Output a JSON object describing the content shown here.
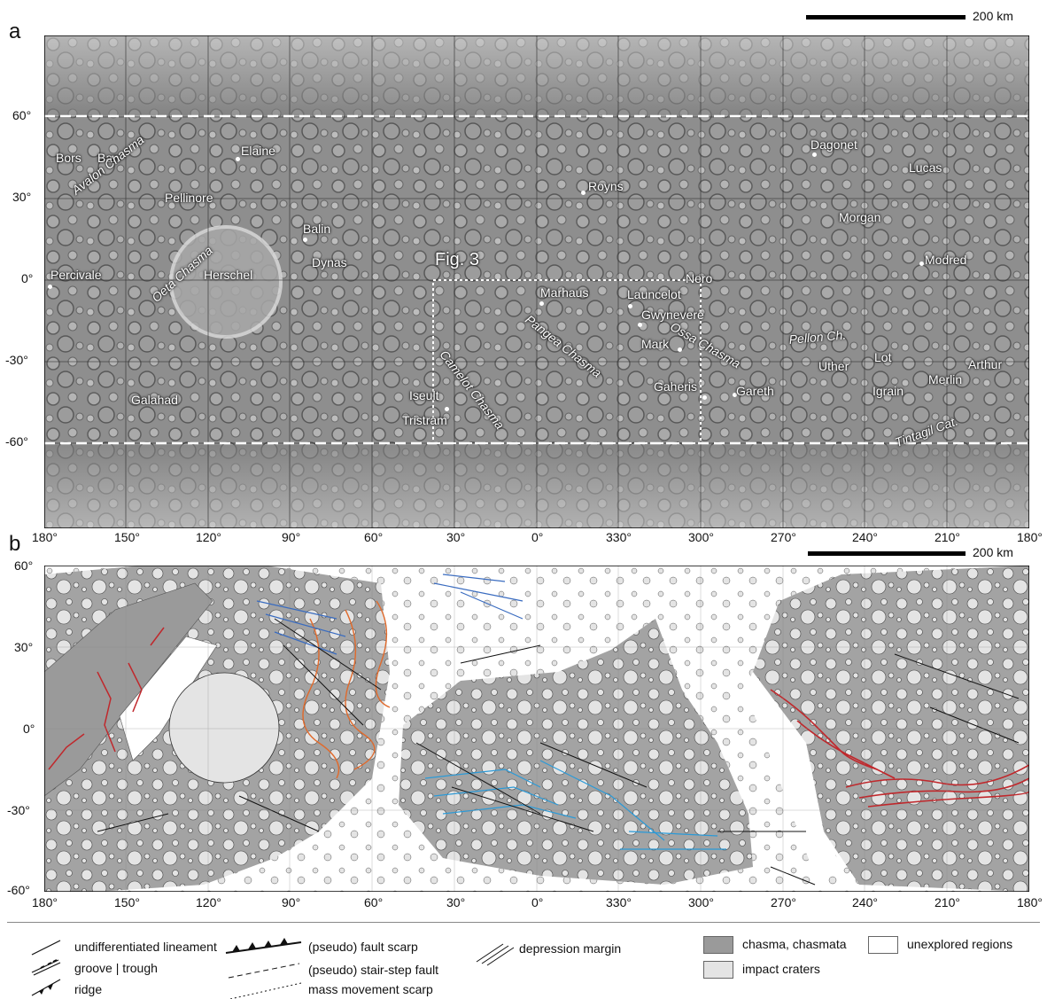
{
  "panel_a": {
    "label": "a",
    "scale_bar": "200 km",
    "fig_box_label": "Fig. 3",
    "features": [
      {
        "name": "Bors",
        "style": "normal"
      },
      {
        "name": "Ban",
        "style": "normal"
      },
      {
        "name": "Elaine",
        "style": "normal"
      },
      {
        "name": "Avalon Chasma",
        "style": "italic"
      },
      {
        "name": "Pellinore",
        "style": "normal"
      },
      {
        "name": "Balin",
        "style": "normal"
      },
      {
        "name": "Oeta Chasma",
        "style": "italic"
      },
      {
        "name": "Dynas",
        "style": "normal"
      },
      {
        "name": "Percivale",
        "style": "normal"
      },
      {
        "name": "Herschel",
        "style": "normal"
      },
      {
        "name": "Galahad",
        "style": "normal"
      },
      {
        "name": "Royns",
        "style": "normal"
      },
      {
        "name": "Dagonet",
        "style": "normal"
      },
      {
        "name": "Lucas",
        "style": "normal"
      },
      {
        "name": "Morgan",
        "style": "normal"
      },
      {
        "name": "Modred",
        "style": "normal"
      },
      {
        "name": "Nero",
        "style": "normal"
      },
      {
        "name": "Marhaus",
        "style": "normal"
      },
      {
        "name": "Launcelot",
        "style": "normal"
      },
      {
        "name": "Gwynevere",
        "style": "normal"
      },
      {
        "name": "Mark",
        "style": "normal"
      },
      {
        "name": "Pangea Chasma",
        "style": "italic"
      },
      {
        "name": "Ossa Chasma",
        "style": "italic"
      },
      {
        "name": "Camelot Chasma",
        "style": "italic"
      },
      {
        "name": "Iseult",
        "style": "normal"
      },
      {
        "name": "Tristram",
        "style": "normal"
      },
      {
        "name": "Gaheris",
        "style": "normal"
      },
      {
        "name": "Gareth",
        "style": "normal"
      },
      {
        "name": "Pellon Ch.",
        "style": "italic"
      },
      {
        "name": "Uther",
        "style": "normal"
      },
      {
        "name": "Lot",
        "style": "normal"
      },
      {
        "name": "Igrain",
        "style": "normal"
      },
      {
        "name": "Merlin",
        "style": "normal"
      },
      {
        "name": "Arthur",
        "style": "normal"
      },
      {
        "name": "Tintagil Cat.",
        "style": "italic"
      }
    ],
    "lat_ticks": [
      "60°",
      "30°",
      "0°",
      "-30°",
      "-60°"
    ],
    "lon_ticks": [
      "180°",
      "150°",
      "120°",
      "90°",
      "60°",
      "30°",
      "0°",
      "330°",
      "300°",
      "270°",
      "240°",
      "210°",
      "180°"
    ]
  },
  "panel_b": {
    "label": "b",
    "scale_bar": "200 km",
    "lat_ticks": [
      "60°",
      "30°",
      "0°",
      "-30°",
      "-60°"
    ],
    "lon_ticks": [
      "180°",
      "150°",
      "120°",
      "90°",
      "60°",
      "30°",
      "0°",
      "330°",
      "300°",
      "270°",
      "240°",
      "210°",
      "180°"
    ]
  },
  "legend": {
    "items": [
      {
        "label": "undifferentiated lineament",
        "symbol": "line"
      },
      {
        "label": "groove | trough",
        "symbol": "groove"
      },
      {
        "label": "ridge",
        "symbol": "ridge"
      },
      {
        "label": "(pseudo) fault scarp",
        "symbol": "fault"
      },
      {
        "label": "(pseudo) stair-step fault",
        "symbol": "dash"
      },
      {
        "label": "mass movement scarp",
        "symbol": "mass"
      },
      {
        "label": "depression margin",
        "symbol": "double"
      },
      {
        "label": "chasma, chasmata",
        "symbol": "swatch-dark"
      },
      {
        "label": "unexplored regions",
        "symbol": "swatch-white"
      },
      {
        "label": "impact craters",
        "symbol": "swatch-light"
      }
    ]
  },
  "colors": {
    "map_dark": "#8a8a8a",
    "map_light": "#c8c8c8",
    "chasma": "#9a9a9a",
    "crater": "#e4e4e4",
    "red_fault": "#c0282c",
    "orange": "#e06a2c",
    "blue": "#3a6cc0",
    "cyan": "#2a9ad8"
  }
}
